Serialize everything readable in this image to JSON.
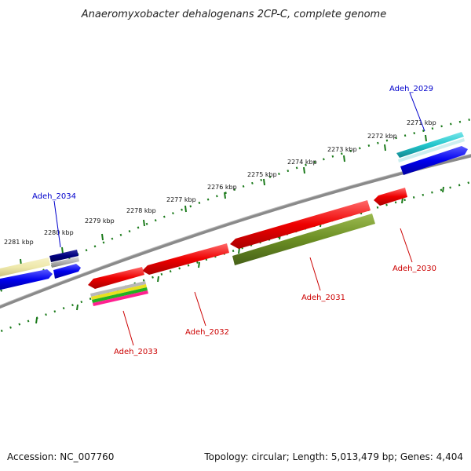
{
  "title": "Anaeromyxobacter dehalogenans 2CP-C, complete genome",
  "footer": {
    "accession": "Accession: NC_007760",
    "summary": "Topology: circular; Length: 5,013,479 bp; Genes: 4,404"
  },
  "ticks": [
    "2271 kbp",
    "2272 kbp",
    "2273 kbp",
    "2274 kbp",
    "2275 kbp",
    "2276 kbp",
    "2277 kbp",
    "2278 kbp",
    "2279 kbp",
    "2280 kbp",
    "2281 kbp"
  ],
  "genes": [
    {
      "name": "Adeh_2029",
      "strand": "forward",
      "color": "#0000cc"
    },
    {
      "name": "Adeh_2030",
      "strand": "reverse",
      "color": "#cc0000"
    },
    {
      "name": "Adeh_2031",
      "strand": "reverse",
      "color": "#cc0000"
    },
    {
      "name": "Adeh_2032",
      "strand": "reverse",
      "color": "#cc0000"
    },
    {
      "name": "Adeh_2033",
      "strand": "reverse",
      "color": "#cc0000"
    },
    {
      "name": "Adeh_2034",
      "strand": "forward",
      "color": "#0000cc"
    }
  ],
  "colors": {
    "backbone": "#808080",
    "tick": "#1a7a1a",
    "forward_cds": "#0000ff",
    "reverse_cds": "#ff0000",
    "cog_cyan": "#22c6cc",
    "cog_olive": "#6b8e23",
    "cog_khaki": "#eee8aa",
    "cog_navy": "#000080"
  }
}
